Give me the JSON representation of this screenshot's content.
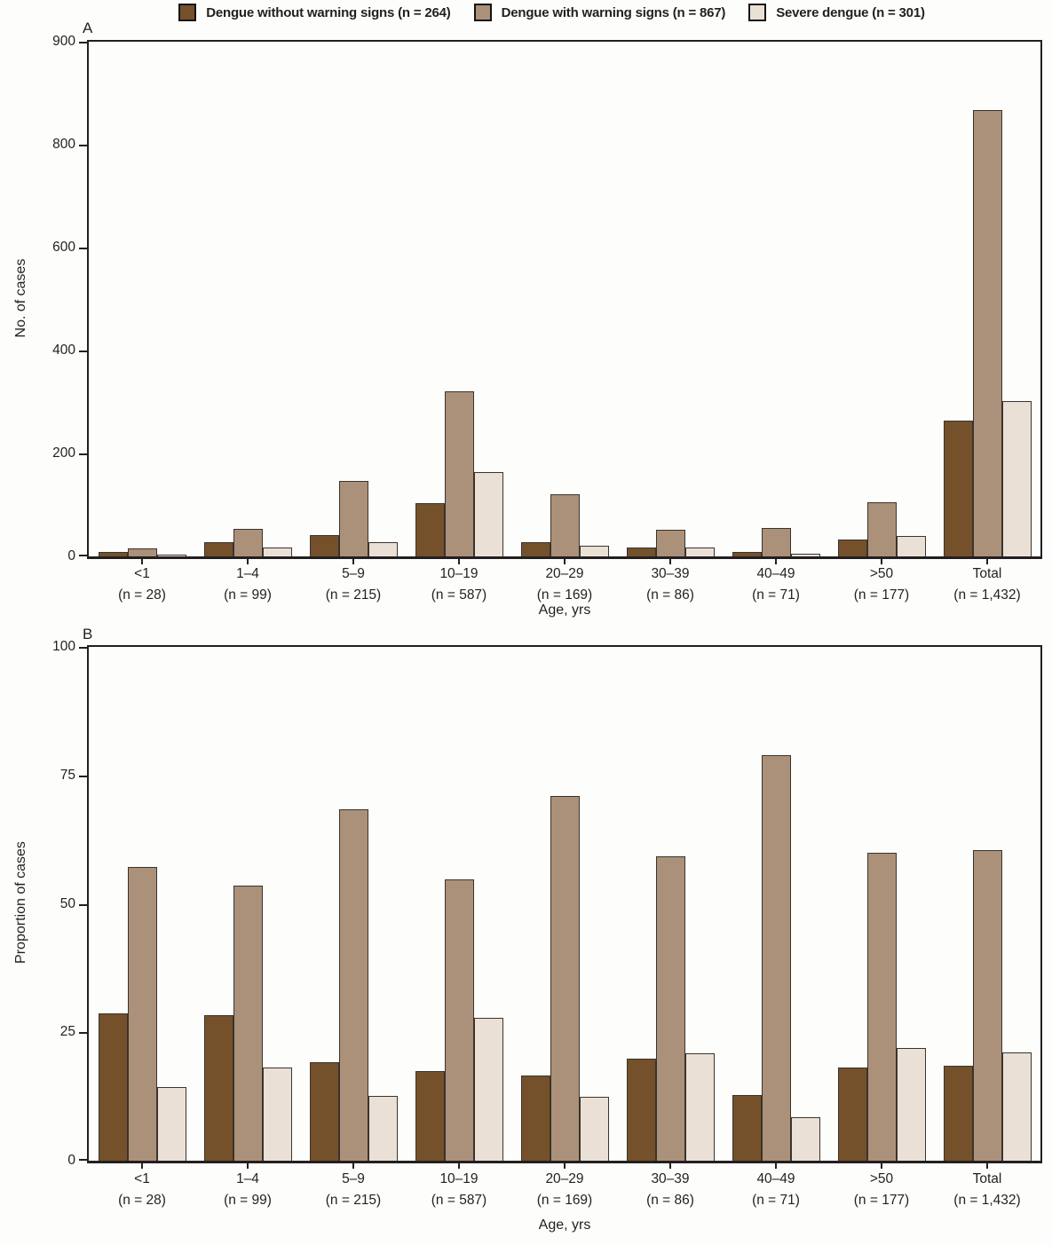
{
  "colors": {
    "without_warning": "#74512a",
    "with_warning": "#ab9179",
    "severe": "#eae0d6",
    "bar_outline": "#3a342d",
    "axis": "#231f20"
  },
  "legend": {
    "items": [
      {
        "label": "Dengue without warning signs (n = 264)",
        "color": "#74512a"
      },
      {
        "label": "Dengue with warning signs (n = 867)",
        "color": "#ab9179"
      },
      {
        "label": "Severe dengue (n = 301)",
        "color": "#eae0d6"
      }
    ]
  },
  "chart_data": [
    {
      "type": "bar",
      "panel_label": "A",
      "ylabel": "No. of cases",
      "xlabel": "Age, yrs",
      "ylim": [
        0,
        900
      ],
      "yticks": [
        900,
        800,
        600,
        400,
        200,
        0
      ],
      "grid": false,
      "legend_position": "top-center",
      "categories": [
        "<1",
        "1–4",
        "5–9",
        "10–19",
        "20–29",
        "30–39",
        "40–49",
        ">50",
        "Total"
      ],
      "n_labels": [
        "(n = 28)",
        "(n = 99)",
        "(n = 215)",
        "(n = 587)",
        "(n = 169)",
        "(n = 86)",
        "(n = 71)",
        "(n = 177)",
        "(n = 1,432)"
      ],
      "series": [
        {
          "name": "Dengue without warning signs (n = 264)",
          "values": [
            8,
            28,
            41,
            103,
            28,
            17,
            9,
            32,
            264
          ]
        },
        {
          "name": "Dengue with warning signs (n = 867)",
          "values": [
            16,
            53,
            147,
            321,
            120,
            51,
            56,
            106,
            867
          ]
        },
        {
          "name": "Severe dengue (n = 301)",
          "values": [
            4,
            18,
            27,
            163,
            21,
            18,
            6,
            39,
            301
          ]
        }
      ]
    },
    {
      "type": "bar",
      "panel_label": "B",
      "ylabel": "Proportion of cases",
      "xlabel": "Age, yrs",
      "ylim": [
        0,
        100
      ],
      "yticks": [
        100,
        75,
        50,
        25,
        0
      ],
      "grid": false,
      "legend_position": "shared-top",
      "categories": [
        "<1",
        "1–4",
        "5–9",
        "10–19",
        "20–29",
        "30–39",
        "40–49",
        ">50",
        "Total"
      ],
      "n_labels": [
        "(n = 28)",
        "(n = 99)",
        "(n = 215)",
        "(n = 587)",
        "(n = 169)",
        "(n = 86)",
        "(n = 71)",
        "(n = 177)",
        "(n = 1,432)"
      ],
      "series": [
        {
          "name": "Dengue without warning signs (n = 264)",
          "values": [
            28.6,
            28.3,
            19.1,
            17.5,
            16.6,
            19.8,
            12.7,
            18.1,
            18.4
          ]
        },
        {
          "name": "Dengue with warning signs (n = 867)",
          "values": [
            57.1,
            53.5,
            68.4,
            54.7,
            71.0,
            59.3,
            78.9,
            59.9,
            60.5
          ]
        },
        {
          "name": "Severe dengue (n = 301)",
          "values": [
            14.3,
            18.2,
            12.6,
            27.8,
            12.4,
            20.9,
            8.5,
            22.0,
            21.0
          ]
        }
      ]
    }
  ]
}
